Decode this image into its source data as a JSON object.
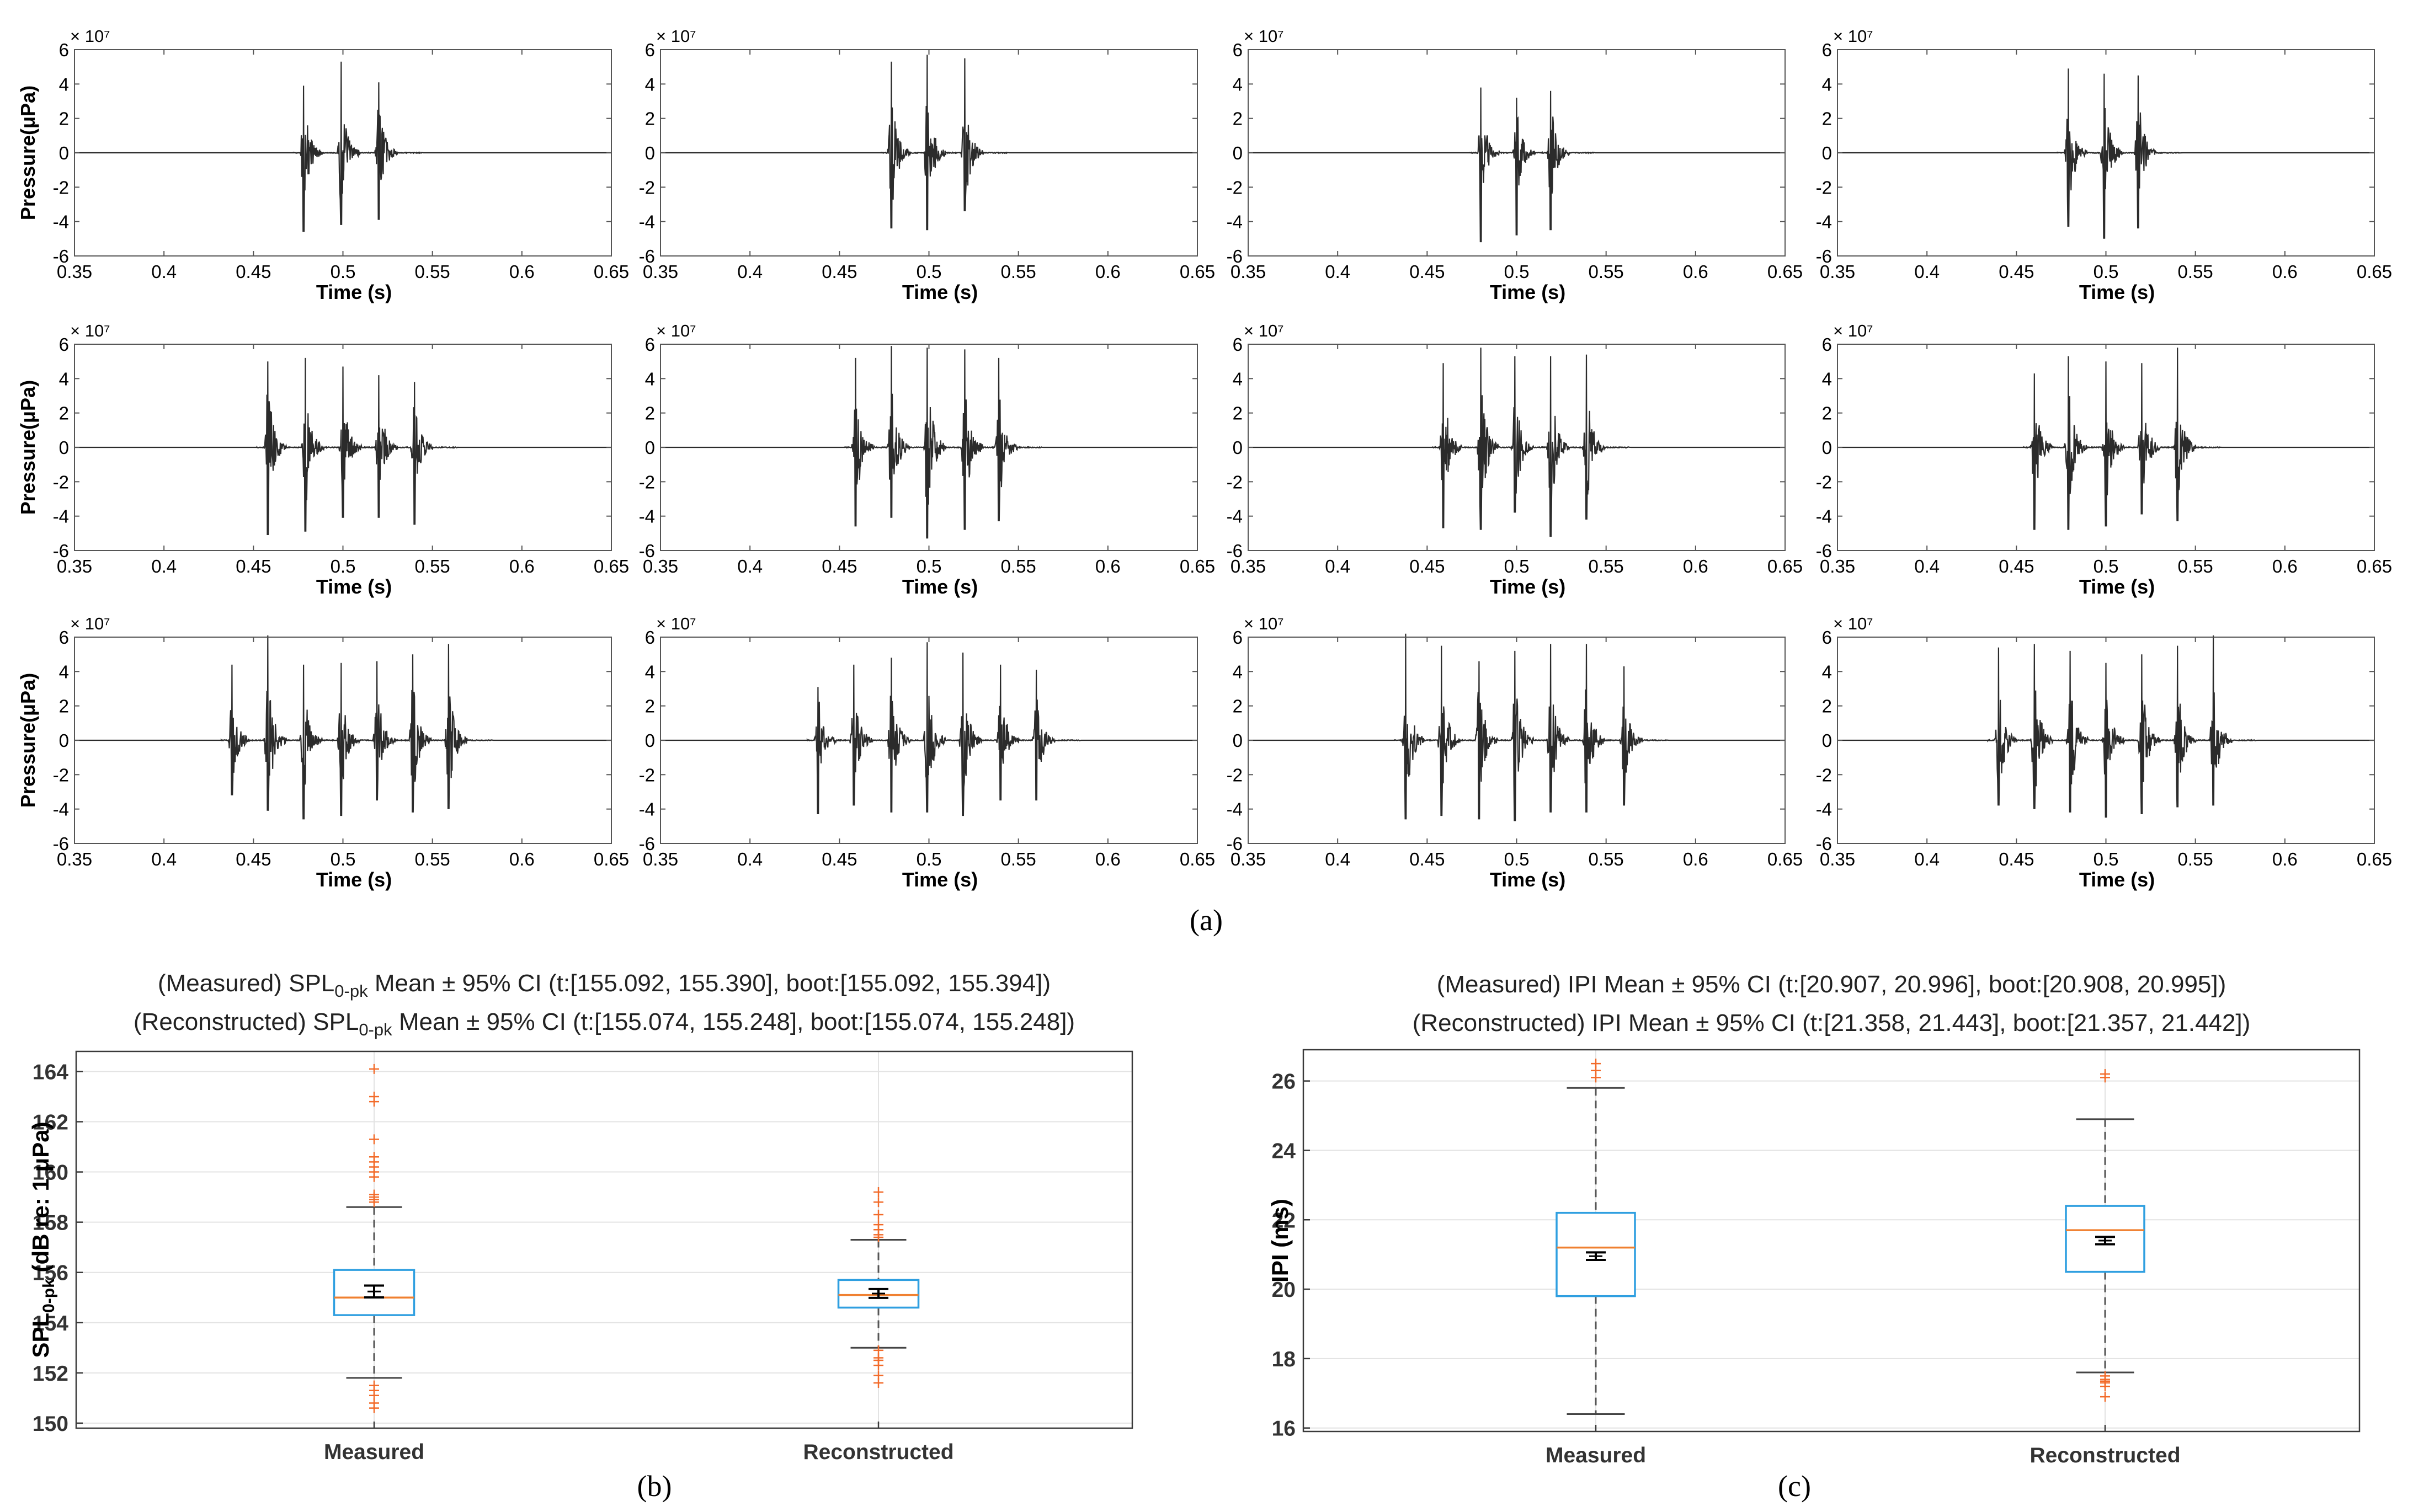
{
  "chart_data": [
    {
      "type": "line",
      "panel": "a",
      "caption": "(a)",
      "grid": "3 rows x 4 columns",
      "xlabel": "Time (s)",
      "ylabel": "Pressure(μPa)",
      "y_exponent": "× 10⁷",
      "xlim": [
        0.35,
        0.65
      ],
      "ylim": [
        -6,
        6
      ],
      "x_ticks": [
        "0.35",
        "0.4",
        "0.45",
        "0.5",
        "0.55",
        "0.6",
        "0.65"
      ],
      "y_ticks": [
        "6",
        "4",
        "2",
        "0",
        "-2",
        "-4",
        "-6"
      ],
      "series": [
        {
          "name": "row1-col1",
          "pulse_times": [
            0.478,
            0.499,
            0.52
          ],
          "peak_pos": [
            3.9,
            5.3,
            4.1
          ],
          "peak_neg": [
            -4.6,
            -4.2,
            -3.9
          ]
        },
        {
          "name": "row1-col2",
          "pulse_times": [
            0.479,
            0.499,
            0.52
          ],
          "peak_pos": [
            5.3,
            5.7,
            5.5
          ],
          "peak_neg": [
            -4.4,
            -4.5,
            -3.4
          ]
        },
        {
          "name": "row1-col3",
          "pulse_times": [
            0.48,
            0.5,
            0.519
          ],
          "peak_pos": [
            3.8,
            3.2,
            3.6
          ],
          "peak_neg": [
            -5.2,
            -4.8,
            -4.5
          ]
        },
        {
          "name": "row1-col4",
          "pulse_times": [
            0.479,
            0.499,
            0.518
          ],
          "peak_pos": [
            4.9,
            4.6,
            4.5
          ],
          "peak_neg": [
            -4.3,
            -5.0,
            -4.4
          ]
        },
        {
          "name": "row2-col1",
          "pulse_times": [
            0.458,
            0.479,
            0.5,
            0.52,
            0.54
          ],
          "peak_pos": [
            5.0,
            5.2,
            4.7,
            4.2,
            3.8
          ],
          "peak_neg": [
            -5.1,
            -4.9,
            -4.1,
            -4.1,
            -4.5
          ]
        },
        {
          "name": "row2-col2",
          "pulse_times": [
            0.459,
            0.479,
            0.499,
            0.52,
            0.539
          ],
          "peak_pos": [
            5.2,
            5.9,
            5.8,
            5.7,
            5.2
          ],
          "peak_neg": [
            -4.6,
            -4.1,
            -5.3,
            -4.8,
            -4.3
          ]
        },
        {
          "name": "row2-col3",
          "pulse_times": [
            0.459,
            0.48,
            0.499,
            0.519,
            0.539
          ],
          "peak_pos": [
            4.9,
            5.8,
            5.3,
            5.3,
            5.4
          ],
          "peak_neg": [
            -4.7,
            -4.8,
            -3.8,
            -5.2,
            -4.2
          ]
        },
        {
          "name": "row2-col4",
          "pulse_times": [
            0.46,
            0.479,
            0.5,
            0.52,
            0.54
          ],
          "peak_pos": [
            4.3,
            5.3,
            5.0,
            4.9,
            5.8
          ],
          "peak_neg": [
            -4.8,
            -4.8,
            -4.6,
            -3.9,
            -4.3
          ]
        },
        {
          "name": "row3-col1",
          "pulse_times": [
            0.438,
            0.458,
            0.478,
            0.499,
            0.519,
            0.539,
            0.559
          ],
          "peak_pos": [
            4.4,
            6.1,
            4.4,
            4.5,
            4.6,
            5.0,
            5.6
          ],
          "peak_neg": [
            -3.2,
            -4.1,
            -4.6,
            -4.4,
            -3.5,
            -4.2,
            -4.0
          ]
        },
        {
          "name": "row3-col2",
          "pulse_times": [
            0.438,
            0.458,
            0.479,
            0.499,
            0.519,
            0.54,
            0.56
          ],
          "peak_pos": [
            3.1,
            4.4,
            4.8,
            5.7,
            5.1,
            4.4,
            4.1
          ],
          "peak_neg": [
            -4.3,
            -3.8,
            -4.2,
            -4.2,
            -4.4,
            -3.5,
            -3.5
          ]
        },
        {
          "name": "row3-col3",
          "pulse_times": [
            0.438,
            0.458,
            0.479,
            0.499,
            0.519,
            0.539,
            0.56
          ],
          "peak_pos": [
            6.2,
            5.5,
            4.6,
            5.2,
            5.6,
            5.6,
            4.3
          ],
          "peak_neg": [
            -4.6,
            -4.4,
            -4.6,
            -4.7,
            -4.2,
            -4.2,
            -3.8
          ]
        },
        {
          "name": "row3-col4",
          "pulse_times": [
            0.44,
            0.46,
            0.48,
            0.5,
            0.52,
            0.54,
            0.56
          ],
          "peak_pos": [
            5.4,
            5.6,
            5.2,
            4.5,
            5.0,
            5.5,
            6.1
          ],
          "peak_neg": [
            -3.8,
            -4.0,
            -4.2,
            -4.5,
            -4.3,
            -3.9,
            -3.8
          ]
        }
      ]
    },
    {
      "type": "box",
      "panel": "b",
      "caption": "(b)",
      "title_lines": [
        {
          "prefix": "(Measured)  SPL",
          "sub": "0-pk",
          "suffix": "  Mean ± 95%  CI  (t:[155.092,  155.390],  boot:[155.092,  155.394])"
        },
        {
          "prefix": "(Reconstructed)  SPL",
          "sub": "0-pk",
          "suffix": "  Mean ± 95%  CI  (t:[155.074,  155.248],  boot:[155.074,  155.248])"
        }
      ],
      "ylabel_main": "SPL",
      "ylabel_sub": "0-pk",
      "ylabel_units": "  (dB  re:  1  μPa)",
      "categories": [
        "Measured",
        "Reconstructed"
      ],
      "ylim": [
        149.8,
        164.8
      ],
      "y_ticks": [
        "150",
        "152",
        "154",
        "156",
        "158",
        "160",
        "162",
        "164"
      ],
      "series": [
        {
          "name": "Measured",
          "whisker_low": 151.8,
          "q1": 154.3,
          "median": 155.0,
          "q3": 156.1,
          "whisker_high": 158.6,
          "ci": [
            155.092,
            155.39
          ],
          "mean": 155.24,
          "outliers": [
            164.1,
            163.0,
            162.8,
            161.3,
            160.6,
            160.4,
            160.2,
            160.0,
            159.8,
            159.1,
            159.0,
            158.9,
            158.8,
            151.5,
            151.3,
            151.1,
            150.8,
            150.6
          ]
        },
        {
          "name": "Reconstructed",
          "whisker_low": 153.0,
          "q1": 154.6,
          "median": 155.1,
          "q3": 155.7,
          "whisker_high": 157.3,
          "ci": [
            155.074,
            155.248
          ],
          "mean": 155.16,
          "outliers": [
            159.2,
            158.8,
            158.3,
            157.9,
            157.7,
            157.5,
            157.4,
            152.9,
            152.6,
            152.5,
            152.3,
            151.9,
            151.6
          ]
        }
      ]
    },
    {
      "type": "box",
      "panel": "c",
      "caption": "(c)",
      "title_lines": [
        {
          "prefix": "(Measured)  IPI  Mean ± 95%  CI  (t:[20.907,  20.996],  boot:[20.908,  20.995])",
          "sub": "",
          "suffix": ""
        },
        {
          "prefix": "(Reconstructed)  IPI  Mean ± 95%  CI  (t:[21.358,  21.443],  boot:[21.357,  21.442])",
          "sub": "",
          "suffix": ""
        }
      ],
      "ylabel_main": "IPI (ms)",
      "ylabel_sub": "",
      "ylabel_units": "",
      "categories": [
        "Measured",
        "Reconstructed"
      ],
      "ylim": [
        15.9,
        26.9
      ],
      "y_ticks": [
        "16",
        "18",
        "20",
        "22",
        "24",
        "26"
      ],
      "series": [
        {
          "name": "Measured",
          "whisker_low": 16.4,
          "q1": 19.8,
          "median": 21.2,
          "q3": 22.2,
          "whisker_high": 25.8,
          "ci": [
            20.907,
            20.996
          ],
          "mean": 20.95,
          "outliers": [
            26.5,
            26.3,
            26.1
          ]
        },
        {
          "name": "Reconstructed",
          "whisker_low": 17.6,
          "q1": 20.5,
          "median": 21.7,
          "q3": 22.4,
          "whisker_high": 24.9,
          "ci": [
            21.358,
            21.443
          ],
          "mean": 21.4,
          "outliers": [
            26.2,
            26.1,
            17.5,
            17.4,
            17.35,
            17.3,
            17.2,
            16.9
          ]
        }
      ]
    }
  ]
}
